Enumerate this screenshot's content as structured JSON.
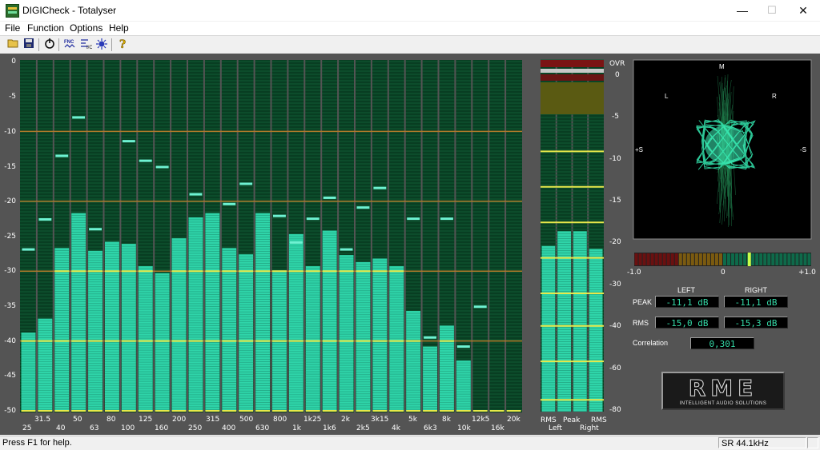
{
  "window": {
    "title": "DIGICheck - Totalyser",
    "minimize": "—",
    "maximize": "☐",
    "close": "✕"
  },
  "menu": [
    "File",
    "Function",
    "Options",
    "Help"
  ],
  "toolbar": [
    "open-icon",
    "save-icon",
    "power-icon",
    "function-icon",
    "io-icon",
    "settings-icon",
    "help-icon"
  ],
  "analyzer": {
    "y_axis": [
      "0",
      "-5",
      "-10",
      "-15",
      "-20",
      "-25",
      "-30",
      "-35",
      "-40",
      "-45",
      "-50"
    ],
    "y_range_db": [
      -50,
      0
    ],
    "bands_row1": [
      "31.5",
      "50",
      "80",
      "125",
      "200",
      "315",
      "500",
      "800",
      "1k25",
      "2k",
      "3k15",
      "5k",
      "8k",
      "12k5",
      "20k"
    ],
    "bands_row2": [
      "25",
      "40",
      "63",
      "100",
      "160",
      "250",
      "400",
      "630",
      "1k",
      "1k6",
      "2k5",
      "4k",
      "6k3",
      "10k",
      "16k"
    ],
    "band_levels_db": [
      -38.8,
      -36.8,
      -26.7,
      -21.7,
      -27.1,
      -25.8,
      -26.1,
      -29.3,
      -30.3,
      -25.3,
      -22.3,
      -21.7,
      -26.7,
      -27.6,
      -21.7,
      -29.9,
      -24.7,
      -29.3,
      -24.2,
      -27.7,
      -28.7,
      -28.2,
      -29.3,
      -35.7,
      -40.8,
      -37.8,
      -42.8,
      -50,
      -50,
      -50
    ],
    "band_peaks_db": [
      -26.9,
      -22.6,
      -13.5,
      -8.0,
      -24.0,
      null,
      -11.4,
      -14.2,
      -15.1,
      null,
      -19.0,
      null,
      -20.4,
      -17.5,
      null,
      -22.1,
      -25.9,
      -22.5,
      -19.5,
      -26.9,
      -20.9,
      -18.1,
      null,
      -22.5,
      -39.5,
      -22.5,
      -40.8,
      -35.1,
      null,
      null
    ]
  },
  "level_meter": {
    "scale": [
      "OVR",
      "0",
      "-5",
      "-10",
      "-15",
      "-20",
      "-30",
      "-40",
      "-60",
      "-80"
    ],
    "labels_top": [
      "RMS",
      "Peak",
      "RMS"
    ],
    "labels_bottom": [
      "Left",
      "Right"
    ],
    "fill_fraction": [
      0.56,
      0.61,
      0.61,
      0.55
    ]
  },
  "goniometer": {
    "top": "M",
    "left": "L",
    "right": "R",
    "side_left": "+S",
    "side_right": "-S"
  },
  "correlation_scale": [
    "-1.0",
    "0",
    "+1.0"
  ],
  "correlation_value": 0.301,
  "readouts": {
    "left_header": "LEFT",
    "right_header": "RIGHT",
    "peak_label": "PEAK",
    "rms_label": "RMS",
    "peak_left": "-11,1 dB",
    "peak_right": "-11,1 dB",
    "rms_left": "-15,0 dB",
    "rms_right": "-15,3 dB",
    "correlation_label": "Correlation",
    "correlation": "0,301"
  },
  "logo": {
    "main": "RME",
    "sub": "INTELLIGENT AUDIO SOLUTIONS"
  },
  "status": {
    "help": "Press F1 for help.",
    "sample_rate": "SR 44.1kHz"
  },
  "colors": {
    "bar": "#2fd4a9",
    "background": "#0a4a2a",
    "yellow": "#e8e84a",
    "orange": "#b07a2a"
  }
}
